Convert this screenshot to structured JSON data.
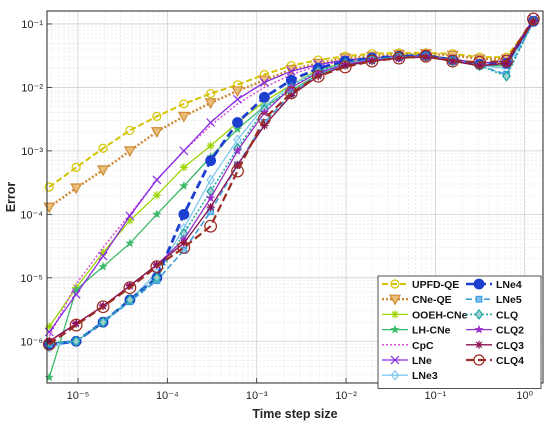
{
  "chart_data": {
    "type": "line",
    "xlabel": "Time step size",
    "ylabel": "Error",
    "xscale": "log",
    "yscale": "log",
    "xlim": [
      4.5e-06,
      1.6
    ],
    "ylim": [
      2.2e-07,
      0.16
    ],
    "grid": true,
    "minor_grid": true,
    "legend_position": "bottom-right",
    "legend_columns": 2,
    "x_tick_labels": [
      "10⁻⁵",
      "10⁻⁴",
      "10⁻³",
      "10⁻²",
      "10⁻¹",
      "10⁰"
    ],
    "y_tick_labels": [
      "10⁻⁶",
      "10⁻⁵",
      "10⁻⁴",
      "10⁻³",
      "10⁻²",
      "10⁻¹"
    ],
    "x": [
      4.77e-06,
      9.54e-06,
      1.91e-05,
      3.81e-05,
      7.63e-05,
      0.000153,
      0.000305,
      0.00061,
      0.00122,
      0.00244,
      0.00488,
      0.00977,
      0.0195,
      0.0391,
      0.0781,
      0.156,
      0.3125,
      0.625,
      1.25
    ],
    "series": [
      {
        "name": "UPFD-QE",
        "color": "#d4c400",
        "dash": "6,3",
        "width": 2,
        "marker": "circle",
        "markerFill": "none",
        "values": [
          0.00027,
          0.00055,
          0.0011,
          0.0021,
          0.0035,
          0.0055,
          0.008,
          0.011,
          0.016,
          0.022,
          0.027,
          0.031,
          0.034,
          0.035,
          0.035,
          0.034,
          0.03,
          0.03,
          0.11
        ]
      },
      {
        "name": "CNe-QE",
        "color": "#cf8a34",
        "dash": "2,2",
        "width": 2.5,
        "marker": "triangle-down",
        "markerFill": "#e9c07a",
        "values": [
          0.00013,
          0.00026,
          0.0005,
          0.001,
          0.002,
          0.0035,
          0.0057,
          0.0088,
          0.013,
          0.019,
          0.024,
          0.029,
          0.031,
          0.033,
          0.034,
          0.032,
          0.028,
          0.028,
          0.11
        ]
      },
      {
        "name": "OOEH-CNe",
        "color": "#9bd600",
        "dash": "",
        "width": 1.3,
        "marker": "asterisk",
        "markerFill": "none",
        "values": [
          1.7e-06,
          7e-06,
          2.5e-05,
          8e-05,
          0.0002,
          0.00055,
          0.0012,
          0.0028,
          0.006,
          0.011,
          0.019,
          0.025,
          0.029,
          0.032,
          0.033,
          0.028,
          0.021,
          0.025,
          0.11
        ]
      },
      {
        "name": "LH-CNe",
        "color": "#3cba6a",
        "dash": "",
        "width": 1.3,
        "marker": "star",
        "markerFill": "none",
        "values": [
          2.7e-07,
          6.5e-06,
          1.5e-05,
          3.5e-05,
          0.0001,
          0.00028,
          0.0008,
          0.0022,
          0.005,
          0.009,
          0.016,
          0.022,
          0.026,
          0.029,
          0.03,
          0.026,
          0.022,
          0.022,
          0.11
        ]
      },
      {
        "name": "CpC",
        "color": "#d94fd9",
        "dash": "2,2",
        "width": 1.5,
        "marker": "none",
        "markerFill": "none",
        "values": [
          1.2e-06,
          8e-06,
          3e-05,
          0.0001,
          0.00035,
          0.001,
          0.0025,
          0.0055,
          0.01,
          0.016,
          0.022,
          0.026,
          0.029,
          0.031,
          0.031,
          0.028,
          0.024,
          0.026,
          0.12
        ]
      },
      {
        "name": "LNe",
        "color": "#8a2be2",
        "dash": "",
        "width": 1.3,
        "marker": "x",
        "markerFill": "none",
        "values": [
          1.4e-06,
          5.5e-06,
          2.2e-05,
          9.5e-05,
          0.00035,
          0.001,
          0.0028,
          0.0065,
          0.012,
          0.018,
          0.023,
          0.027,
          0.029,
          0.031,
          0.032,
          0.028,
          0.024,
          0.026,
          0.12
        ]
      },
      {
        "name": "LNe3",
        "color": "#7ec8f0",
        "dash": "",
        "width": 1.3,
        "marker": "diamond",
        "markerFill": "none",
        "values": [
          8e-07,
          1e-06,
          2e-06,
          4.5e-06,
          1.2e-05,
          6e-05,
          0.00035,
          0.0015,
          0.005,
          0.011,
          0.018,
          0.024,
          0.028,
          0.03,
          0.031,
          0.027,
          0.022,
          0.02,
          0.11
        ]
      },
      {
        "name": "LNe4",
        "color": "#1c3fd0",
        "dash": "8,4",
        "width": 2.8,
        "marker": "circle",
        "markerFill": "#1c3fd0",
        "values": [
          9e-07,
          1e-06,
          2e-06,
          4.5e-06,
          1e-05,
          0.0001,
          0.0007,
          0.0028,
          0.007,
          0.013,
          0.02,
          0.026,
          0.029,
          0.031,
          0.032,
          0.027,
          0.023,
          0.024,
          0.11
        ]
      },
      {
        "name": "LNe5",
        "color": "#3f9ee0",
        "dash": "6,3",
        "width": 1.6,
        "marker": "square",
        "markerFill": "#7ec0f0",
        "values": [
          9e-07,
          1e-06,
          2e-06,
          4.2e-06,
          9e-06,
          2.7e-05,
          0.00011,
          0.0006,
          0.0028,
          0.008,
          0.016,
          0.023,
          0.027,
          0.03,
          0.031,
          0.027,
          0.022,
          0.016,
          0.11
        ]
      },
      {
        "name": "CLQ",
        "color": "#22a6a6",
        "dash": "2,2",
        "width": 1.6,
        "marker": "diamond",
        "markerFill": "#9fd0d0",
        "values": [
          9.5e-07,
          1e-06,
          2e-06,
          4.5e-06,
          1e-05,
          5e-05,
          0.00023,
          0.0011,
          0.0045,
          0.01,
          0.018,
          0.024,
          0.028,
          0.03,
          0.031,
          0.026,
          0.022,
          0.015,
          0.11
        ]
      },
      {
        "name": "CLQ2",
        "color": "#9b30c8",
        "dash": "",
        "width": 1.3,
        "marker": "star",
        "markerFill": "none",
        "values": [
          1e-06,
          1.9e-06,
          3.6e-06,
          7.5e-06,
          1.6e-05,
          4e-05,
          0.00018,
          0.001,
          0.004,
          0.01,
          0.017,
          0.023,
          0.027,
          0.029,
          0.031,
          0.026,
          0.022,
          0.024,
          0.11
        ]
      },
      {
        "name": "CLQ3",
        "color": "#8a1050",
        "dash": "",
        "width": 1.3,
        "marker": "asterisk",
        "markerFill": "none",
        "values": [
          1e-06,
          1.9e-06,
          3.6e-06,
          7.5e-06,
          1.6e-05,
          3.5e-05,
          0.00013,
          0.0006,
          0.0025,
          0.0075,
          0.015,
          0.022,
          0.026,
          0.029,
          0.03,
          0.026,
          0.022,
          0.024,
          0.11
        ]
      },
      {
        "name": "CLQ4",
        "color": "#9b2a20",
        "dash": "8,4",
        "width": 2.2,
        "marker": "circle",
        "markerFill": "none",
        "values": [
          9e-07,
          1.8e-06,
          3.5e-06,
          7e-06,
          1.5e-05,
          3e-05,
          6.5e-05,
          0.00048,
          0.0032,
          0.0082,
          0.015,
          0.021,
          0.026,
          0.029,
          0.031,
          0.026,
          0.025,
          0.026,
          0.12
        ]
      }
    ],
    "legend_order": [
      "UPFD-QE",
      "LNe4",
      "CNe-QE",
      "LNe5",
      "OOEH-CNe",
      "CLQ",
      "LH-CNe",
      "CLQ2",
      "CpC",
      "CLQ3",
      "LNe",
      "CLQ4",
      "LNe3"
    ]
  }
}
